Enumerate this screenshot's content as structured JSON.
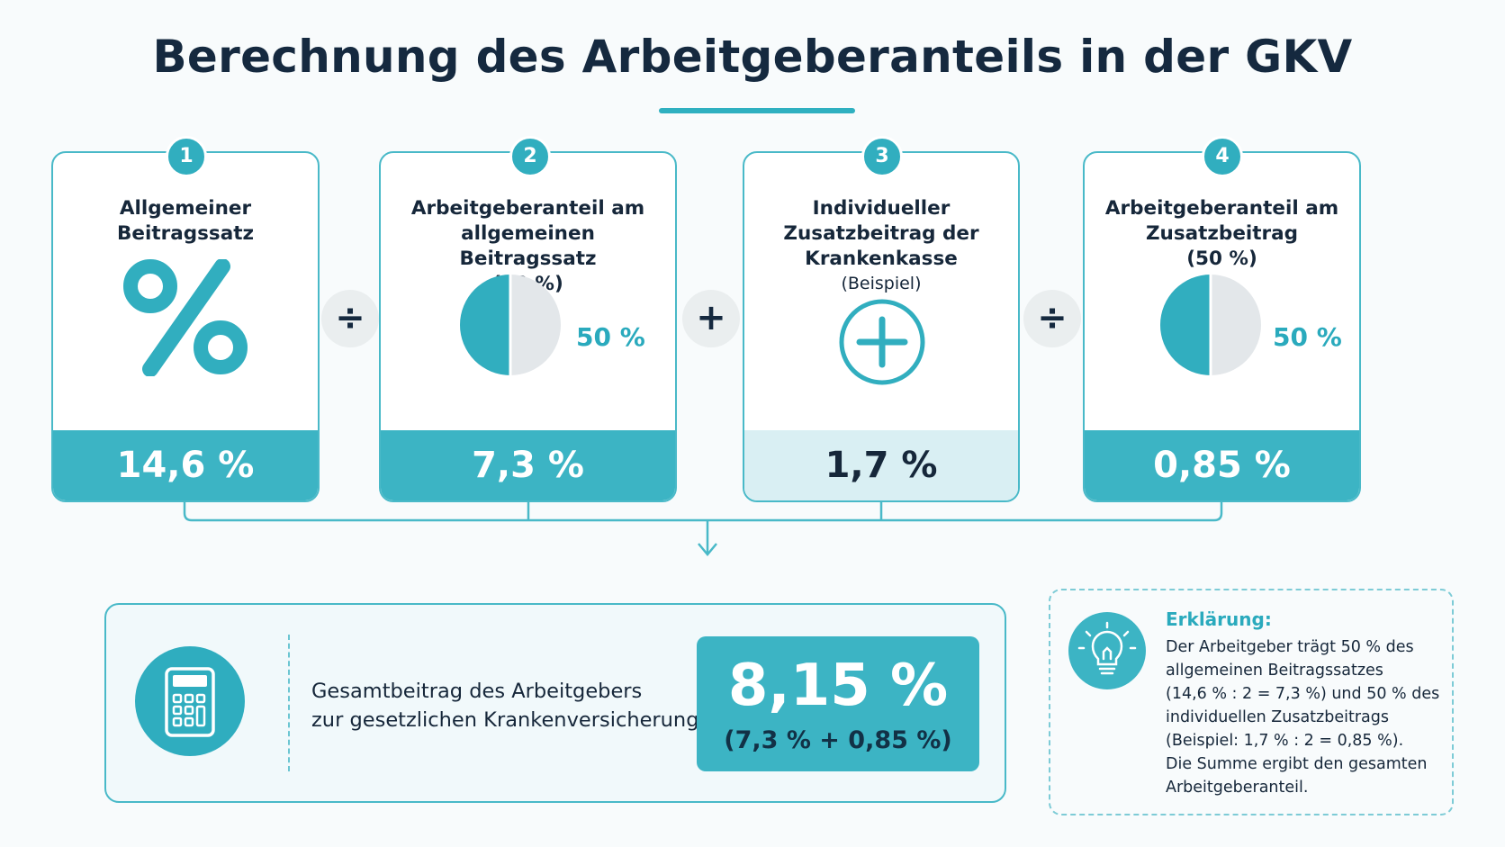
{
  "title": "Berechnung des Arbeitgeberanteils in der GKV",
  "steps": [
    {
      "number": "1",
      "title": "Allgemeiner\nBeitragssatz",
      "value": "14,6 %"
    },
    {
      "number": "2",
      "title": "Arbeitgeberanteil am\nallgemeinen Beitragssatz\n(50 %)",
      "share_label": "50 %",
      "share": 0.5,
      "value": "7,3 %"
    },
    {
      "number": "3",
      "title": "Individueller\nZusatzbeitrag der\nKrankenkasse",
      "subtitle": "(Beispiel)",
      "value": "1,7 %"
    },
    {
      "number": "4",
      "title": "Arbeitgeberanteil am\nZusatzbeitrag\n(50 %)",
      "share_label": "50 %",
      "share": 0.5,
      "value": "0,85 %"
    }
  ],
  "operators": [
    "÷",
    "+",
    "÷"
  ],
  "total": {
    "label_line1": "Gesamtbeitrag des Arbeitgebers",
    "label_line2": "zur gesetzlichen Krankenversicherung",
    "value": "8,15 %",
    "breakdown": "(7,3 % + 0,85 %)"
  },
  "explanation": {
    "title": "Erklärung:",
    "text": "Der Arbeitgeber trägt 50 % des\nallgemeinen Beitragssatzes\n(14,6 % : 2 = 7,3 %) und 50 % des\nindividuellen Zusatzbeitrags\n(Beispiel: 1,7 % : 2 = 0,85 %).\nDie Summe ergibt den gesamten\nArbeitgeberanteil."
  },
  "colors": {
    "accent": "#3cb4c4",
    "accent_dark": "#2aaabd",
    "text": "#16273a",
    "pie_empty": "#e3e7ea",
    "light_fill": "#d9eff3"
  },
  "icons": [
    "percent-icon",
    "half-pie-icon",
    "plus-circle-icon",
    "calculator-icon",
    "lightbulb-icon",
    "down-arrow-icon"
  ]
}
